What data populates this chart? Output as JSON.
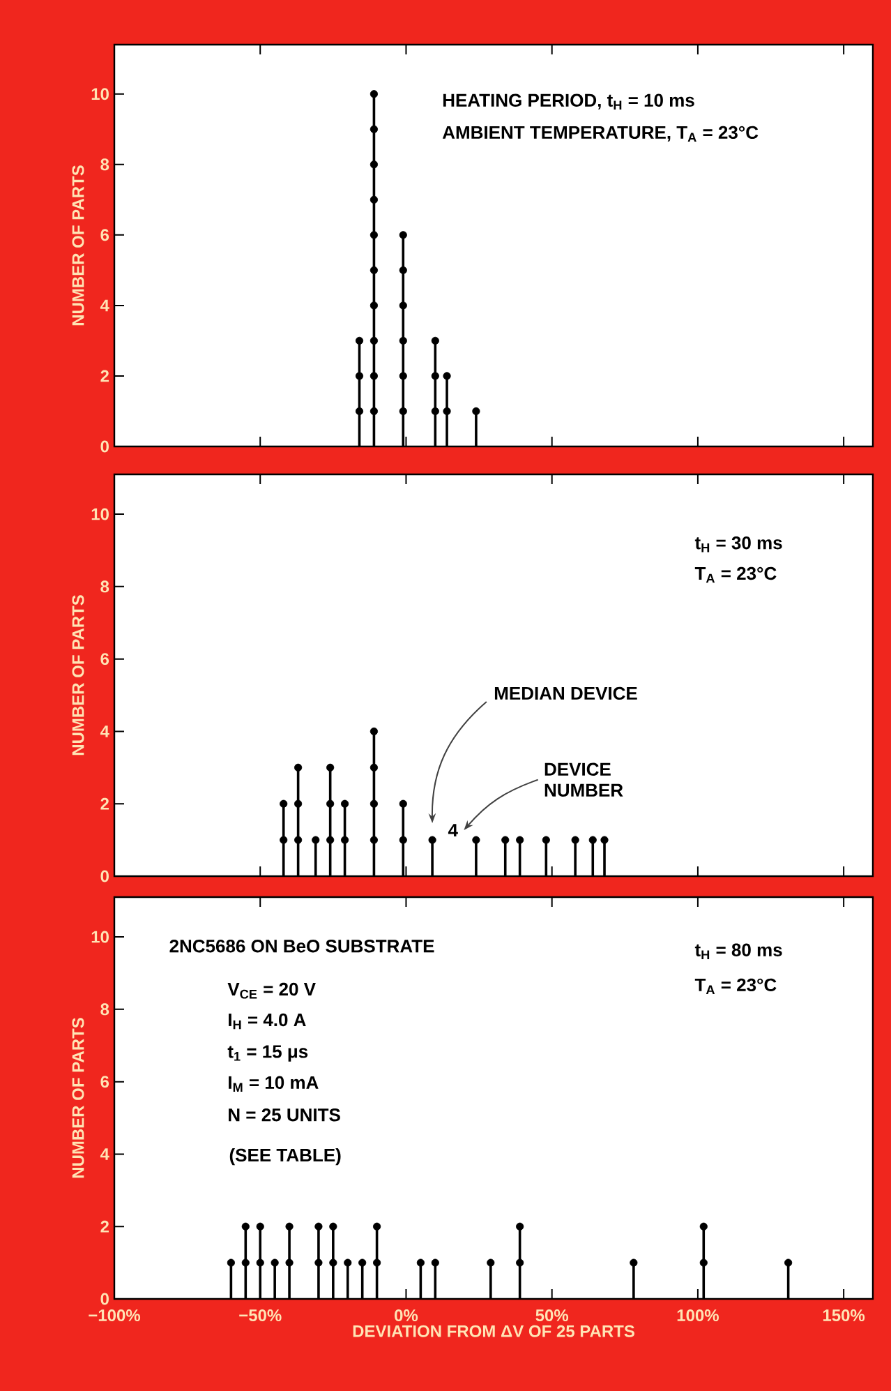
{
  "chart_data": [
    {
      "type": "lollipop",
      "ylabel": "NUMBER OF PARTS",
      "tick_labels": "y",
      "x": [
        -16,
        -11,
        -1,
        10,
        14,
        24
      ],
      "series": [
        {
          "marker": "circle",
          "color": "#000000",
          "values": [
            3,
            10,
            6,
            3,
            2,
            1
          ]
        },
        {
          "type": "scatter",
          "marker": "circle",
          "color": "#000000",
          "x": [
            -16,
            -16,
            -11,
            -11,
            -11,
            -11,
            -11,
            -11,
            -11,
            -11,
            -11,
            -1,
            -1,
            -1,
            -1,
            -1,
            10,
            10,
            14
          ],
          "values": [
            1,
            2,
            1,
            2,
            3,
            4,
            5,
            6,
            7,
            8,
            9,
            1,
            2,
            3,
            4,
            5,
            1,
            2,
            1
          ]
        }
      ],
      "xlim": [
        -100,
        160
      ],
      "ylim": [
        0,
        11.4
      ],
      "xticks": [
        {
          "value": -100,
          "label": null
        },
        {
          "value": -50,
          "label": null
        },
        {
          "value": 0,
          "label": null
        },
        {
          "value": 50,
          "label": null
        },
        {
          "value": 100,
          "label": null
        },
        {
          "value": 150,
          "label": null
        }
      ],
      "yticks": [
        0,
        2,
        4,
        6,
        8,
        10
      ],
      "annotations": [
        "HEATING PERIOD, t$_{H}$ = 10 ms",
        "AMBIENT TEMPERATURE, T$_{A}$ = 23°C"
      ]
    },
    {
      "type": "lollipop",
      "ylabel": "NUMBER OF PARTS",
      "tick_labels": "y",
      "x": [
        -42,
        -37,
        -31,
        -26,
        -21,
        -11,
        -1,
        9,
        24,
        34,
        39,
        48,
        58,
        64,
        68
      ],
      "series": [
        {
          "marker": "circle",
          "color": "#000000",
          "values": [
            2,
            3,
            1,
            3,
            2,
            4,
            2,
            1,
            1,
            1,
            1,
            1,
            1,
            1,
            1
          ]
        },
        {
          "type": "scatter",
          "marker": "circle",
          "color": "#000000",
          "x": [
            -42,
            -37,
            -37,
            -26,
            -26,
            -21,
            -11,
            -11,
            -11,
            -1
          ],
          "values": [
            1,
            1,
            2,
            1,
            2,
            1,
            1,
            2,
            3,
            1
          ]
        }
      ],
      "xlim": [
        -100,
        160
      ],
      "ylim": [
        0,
        11.1
      ],
      "xticks": [
        {
          "value": -100,
          "label": null
        },
        {
          "value": -50,
          "label": null
        },
        {
          "value": 0,
          "label": null
        },
        {
          "value": 50,
          "label": null
        },
        {
          "value": 100,
          "label": null
        },
        {
          "value": 150,
          "label": null
        }
      ],
      "yticks": [
        0,
        2,
        4,
        6,
        8,
        10
      ],
      "annotations": [
        "t$_{H}$ = 30 ms",
        "T$_{A}$ = 23°C",
        "MEDIAN DEVICE",
        {
          "text": "4",
          "x": 9,
          "y": 1
        },
        "DEVICE NUMBER"
      ]
    },
    {
      "type": "lollipop",
      "ylabel": "NUMBER OF PARTS",
      "xlabel": "DEVIATION FROM ΔV OF 25 PARTS",
      "x": [
        -60,
        -55,
        -50,
        -45,
        -40,
        -30,
        -25,
        -20,
        -15,
        -10,
        5,
        10,
        29,
        39,
        78,
        102,
        131
      ],
      "series": [
        {
          "marker": "circle",
          "color": "#000000",
          "values": [
            1,
            2,
            2,
            1,
            2,
            2,
            2,
            1,
            1,
            2,
            1,
            1,
            1,
            2,
            1,
            2,
            1
          ]
        },
        {
          "type": "scatter",
          "marker": "circle",
          "color": "#000000",
          "x": [
            -55,
            -50,
            -40,
            -30,
            -25,
            -10,
            39,
            102
          ],
          "values": [
            1,
            1,
            1,
            1,
            1,
            1,
            1,
            1
          ]
        }
      ],
      "xlim": [
        -100,
        160
      ],
      "ylim": [
        0,
        11.1
      ],
      "xticks": [
        {
          "value": -100,
          "label": "−100%"
        },
        {
          "value": -50,
          "label": "−50%"
        },
        {
          "value": 0,
          "label": "0%"
        },
        {
          "value": 50,
          "label": "50%"
        },
        {
          "value": 100,
          "label": "100%"
        },
        {
          "value": 150,
          "label": "150%"
        }
      ],
      "yticks": [
        0,
        2,
        4,
        6,
        8,
        10
      ],
      "annotations": [
        "2NC5686 ON BeO SUBSTRATE",
        "V$_{CE}$ = 20 V",
        "I$_{H}$ = 4.0 A",
        "t$_{1}$ = 15 μs",
        "I$_{M}$ = 10 mA",
        "N = 25 UNITS",
        "(SEE TABLE)",
        "t$_{H}$ = 80 ms",
        "T$_{A}$ = 23°C"
      ]
    }
  ]
}
